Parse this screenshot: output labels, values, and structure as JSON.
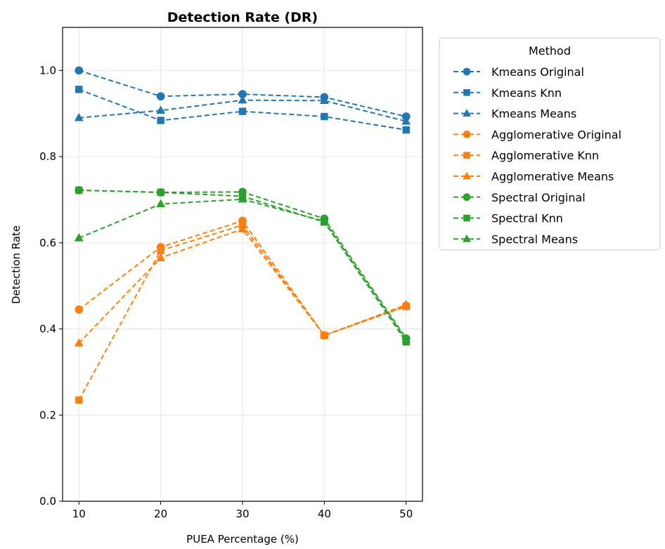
{
  "chart_data": {
    "type": "line",
    "title": "Detection Rate (DR)",
    "xlabel": "PUEA Percentage (%)",
    "ylabel": "Detection Rate",
    "x": [
      10,
      20,
      30,
      40,
      50
    ],
    "xlim": [
      8,
      52
    ],
    "ylim": [
      0,
      1.1
    ],
    "xticks": [
      "10",
      "20",
      "30",
      "40",
      "50"
    ],
    "yticks": [
      "0.0",
      "0.2",
      "0.4",
      "0.6",
      "0.8",
      "1.0"
    ],
    "grid": true,
    "legend": {
      "title": "Method",
      "placement": "outside-right"
    },
    "series": [
      {
        "name": "Kmeans Original",
        "color": "#1f77b4",
        "marker": "circle",
        "values": [
          1.0,
          0.94,
          0.945,
          0.938,
          0.893
        ]
      },
      {
        "name": "Kmeans Knn",
        "color": "#1f77b4",
        "marker": "square",
        "values": [
          0.956,
          0.884,
          0.905,
          0.893,
          0.862
        ]
      },
      {
        "name": "Kmeans Means",
        "color": "#1f77b4",
        "marker": "triangle",
        "values": [
          0.89,
          0.907,
          0.931,
          0.93,
          0.882
        ]
      },
      {
        "name": "Agglomerative Original",
        "color": "#ff7f0e",
        "marker": "circle",
        "values": [
          0.445,
          0.59,
          0.651,
          0.385,
          0.454
        ]
      },
      {
        "name": "Agglomerative Knn",
        "color": "#ff7f0e",
        "marker": "square",
        "values": [
          0.235,
          0.582,
          0.641,
          0.385,
          0.452
        ]
      },
      {
        "name": "Agglomerative Means",
        "color": "#ff7f0e",
        "marker": "triangle",
        "values": [
          0.367,
          0.565,
          0.632,
          0.385,
          0.456
        ]
      },
      {
        "name": "Spectral Original",
        "color": "#2ca02c",
        "marker": "circle",
        "values": [
          0.722,
          0.717,
          0.718,
          0.656,
          0.378
        ]
      },
      {
        "name": "Spectral Knn",
        "color": "#2ca02c",
        "marker": "square",
        "values": [
          0.722,
          0.717,
          0.708,
          0.648,
          0.37
        ]
      },
      {
        "name": "Spectral Means",
        "color": "#2ca02c",
        "marker": "triangle",
        "values": [
          0.611,
          0.69,
          0.701,
          0.65,
          0.375
        ]
      }
    ]
  }
}
